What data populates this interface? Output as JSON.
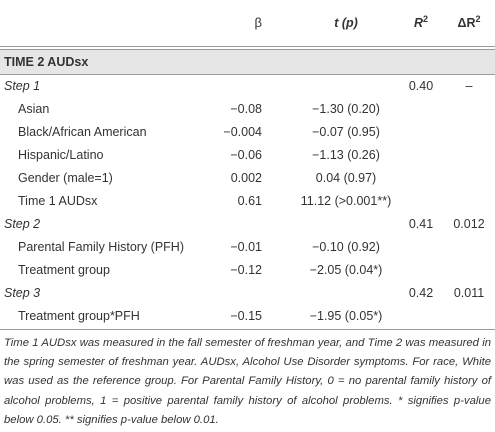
{
  "header": {
    "beta": "β",
    "t_p": "t (p)",
    "r2": "R",
    "r2_sup": "2",
    "delta_r2": "ΔR",
    "delta_r2_sup": "2"
  },
  "section": {
    "title": "TIME 2 AUDsx"
  },
  "rows": [
    {
      "label": "Step 1",
      "beta": "",
      "t": "",
      "r2": "0.40",
      "dr2": "–"
    },
    {
      "label": "Asian",
      "beta": "−0.08",
      "t": "−1.30 (0.20)",
      "r2": "",
      "dr2": ""
    },
    {
      "label": "Black/African American",
      "beta": "−0.004",
      "t": "−0.07 (0.95)",
      "r2": "",
      "dr2": ""
    },
    {
      "label": "Hispanic/Latino",
      "beta": "−0.06",
      "t": "−1.13 (0.26)",
      "r2": "",
      "dr2": ""
    },
    {
      "label": "Gender (male=1)",
      "beta": "0.002",
      "t": "0.04 (0.97)",
      "r2": "",
      "dr2": ""
    },
    {
      "label": "Time 1 AUDsx",
      "beta": "0.61",
      "t": "11.12 (>0.001**)",
      "r2": "",
      "dr2": ""
    },
    {
      "label": "Step 2",
      "beta": "",
      "t": "",
      "r2": "0.41",
      "dr2": "0.012"
    },
    {
      "label": "Parental Family History (PFH)",
      "beta": "−0.01",
      "t": "−0.10 (0.92)",
      "r2": "",
      "dr2": ""
    },
    {
      "label": "Treatment group",
      "beta": "−0.12",
      "t": "−2.05 (0.04*)",
      "r2": "",
      "dr2": ""
    },
    {
      "label": "Step 3",
      "beta": "",
      "t": "",
      "r2": "0.42",
      "dr2": "0.011"
    },
    {
      "label": "Treatment group*PFH",
      "beta": "−0.15",
      "t": "−1.95 (0.05*)",
      "r2": "",
      "dr2": ""
    }
  ],
  "note": "Time 1 AUDsx was measured in the fall semester of freshman year, and Time 2 was measured in the spring semester of freshman year. AUDsx, Alcohol Use Disorder symptoms. For race, White was used as the reference group. For Parental Family History, 0 = no parental family history of alcohol problems, 1 = positive parental family history of alcohol problems. * signifies p-value below 0.05. ** signifies p-value below 0.01."
}
